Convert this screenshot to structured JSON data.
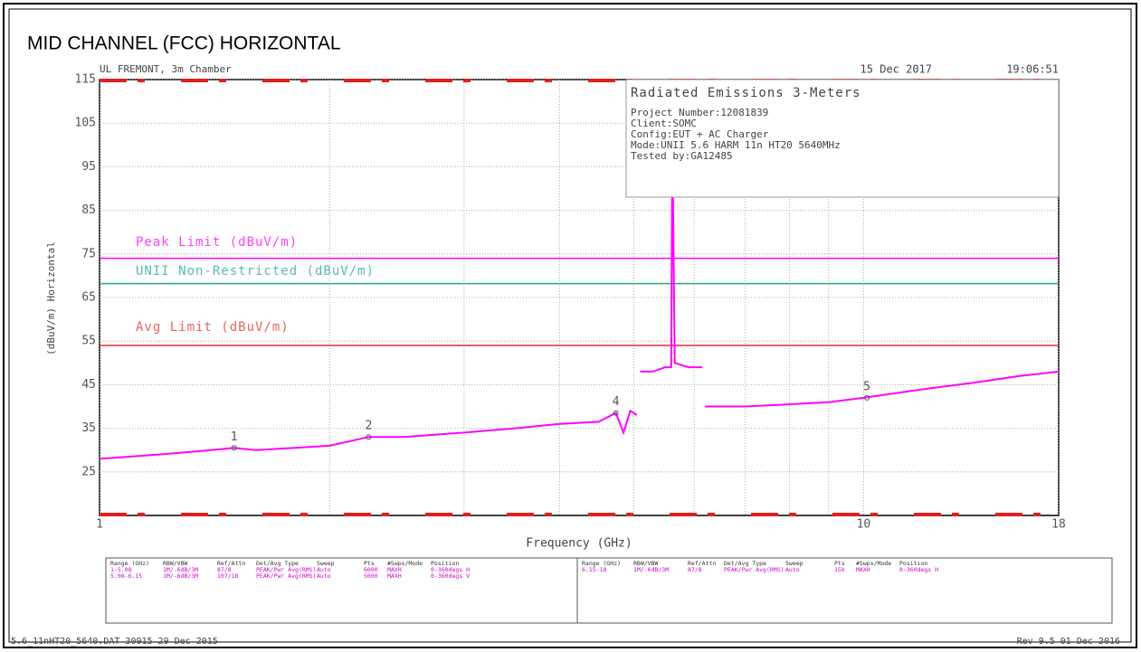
{
  "page_title": "MID CHANNEL (FCC) HORIZONTAL",
  "header": {
    "site": "UL FREMONT, 3m Chamber",
    "date": "15 Dec 2017",
    "time": "19:06:51"
  },
  "info_box": {
    "title": "Radiated Emissions 3-Meters",
    "lines": [
      "Project Number:12081839",
      "Client:SOMC",
      "Config:EUT + AC Charger",
      "Mode:UNII 5.6 HARM 11n HT20 5640MHz",
      "Tested by:GA12485"
    ]
  },
  "chart_data": {
    "type": "line",
    "x_label": "Frequency (GHz)",
    "y_label": "(dBuV/m) Horizontal",
    "xlim": [
      1,
      18
    ],
    "xticks": [
      1,
      10,
      18
    ],
    "log_x": true,
    "minor_grid": true,
    "ylim": [
      15,
      115
    ],
    "yticks": [
      25,
      35,
      45,
      55,
      65,
      75,
      85,
      95,
      105,
      115
    ],
    "grid": true,
    "series": [
      {
        "color": "#ff00ff",
        "x": [
          1,
          1.1,
          1.2,
          1.3,
          1.4,
          1.5,
          1.6,
          1.8,
          2,
          2.25,
          2.5,
          3,
          3.5,
          4,
          4.5,
          4.74,
          4.85,
          4.95,
          5.05,
          null,
          5.1,
          5.3,
          5.5,
          5.6,
          5.62,
          5.66,
          5.9,
          6.15,
          null,
          6.2,
          7,
          8,
          9,
          10,
          12,
          14,
          16,
          18
        ],
        "values": [
          28,
          28.5,
          29,
          29.5,
          30,
          30.5,
          30,
          30.5,
          31,
          33,
          33,
          34,
          35,
          36,
          36.5,
          38.5,
          34,
          39,
          38,
          null,
          48,
          48,
          49,
          49,
          101,
          50,
          49,
          49,
          null,
          40,
          40,
          40.5,
          41,
          42,
          44,
          45.5,
          47,
          48
        ]
      }
    ],
    "limits": [
      {
        "name": "Peak Limit (dBuV/m)",
        "color": "#ff00ff",
        "value": 74
      },
      {
        "name": "UNII Non-Restricted (dBuV/m)",
        "color": "#20a890",
        "value": 68.2
      },
      {
        "name": "Avg Limit (dBuV/m)",
        "color": "#e03030",
        "value": 54
      }
    ],
    "markers": [
      {
        "label": "1",
        "x": 1.5,
        "y": 30.5
      },
      {
        "label": "2",
        "x": 2.25,
        "y": 33
      },
      {
        "label": "4",
        "x": 4.74,
        "y": 38.5
      },
      {
        "label": "5",
        "x": 10.1,
        "y": 42
      }
    ]
  },
  "settings_table": {
    "headers": [
      "Range (GHz)",
      "RBW/VBW",
      "Ref/Attn",
      "Det/Avg Type",
      "Sweep",
      "Pts",
      "#Swps/Mode",
      "Position"
    ],
    "left_rows": [
      [
        "1-5.08",
        "1M/-6dB/3M",
        "87/8",
        "PEAK/Pwr Avg(RMS)",
        "Auto",
        "6000",
        "MAXH",
        "0-360degs H"
      ],
      [
        "5.08-6.15",
        "1M/-6dB/3M",
        "107/18",
        "PEAK/Pwr Avg(RMS)",
        "Auto",
        "5000",
        "MAXH",
        "0-360degs V"
      ]
    ],
    "right_rows": [
      [
        "6.15-18",
        "1M/-6dB/3M",
        "87/8",
        "PEAK/Pwr Avg(RMS)",
        "Auto",
        "15k",
        "MAXH",
        "0-360degs H"
      ]
    ]
  },
  "footer": {
    "file": "5.6_11nHT20_5640.DAT 30915 29 Dec 2015",
    "rev": "Rev 9.5 01 Dec 2016"
  }
}
